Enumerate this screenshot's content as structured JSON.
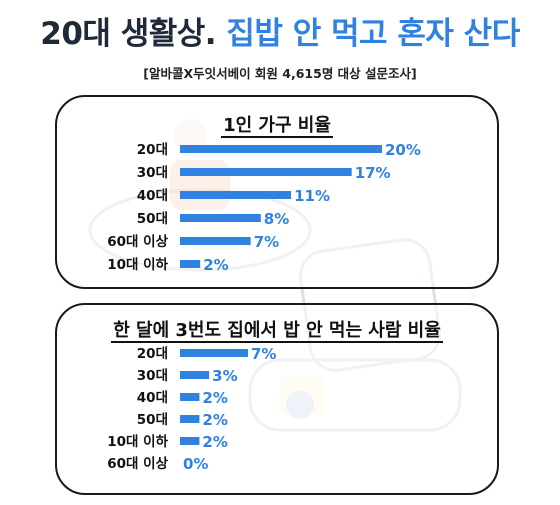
{
  "header": {
    "title_part1": "20대 생활상.",
    "title_part2": "집밥 안 먹고 혼자 산다",
    "subtitle": "[알바콜X두잇서베이 회원 4,615명 대상 설문조사]"
  },
  "colors": {
    "accent": "#2f82e0",
    "text": "#1f2a38"
  },
  "chart_data": [
    {
      "type": "bar",
      "orientation": "horizontal",
      "title": "1인 가구 비율",
      "categories": [
        "20대",
        "30대",
        "40대",
        "50대",
        "60대 이상",
        "10대 이하"
      ],
      "values": [
        20,
        17,
        11,
        8,
        7,
        2
      ],
      "value_labels": [
        "20%",
        "17%",
        "11%",
        "8%",
        "7%",
        "2%"
      ],
      "unit": "%",
      "grid": false,
      "legend": "none"
    },
    {
      "type": "bar",
      "orientation": "horizontal",
      "title": "한 달에 3번도 집에서 밥 안 먹는 사람 비율",
      "categories": [
        "20대",
        "30대",
        "40대",
        "50대",
        "10대 이하",
        "60대 이상"
      ],
      "values": [
        7,
        3,
        2,
        2,
        2,
        0
      ],
      "value_labels": [
        "7%",
        "3%",
        "2%",
        "2%",
        "2%",
        "0%"
      ],
      "unit": "%",
      "grid": false,
      "legend": "none"
    }
  ]
}
